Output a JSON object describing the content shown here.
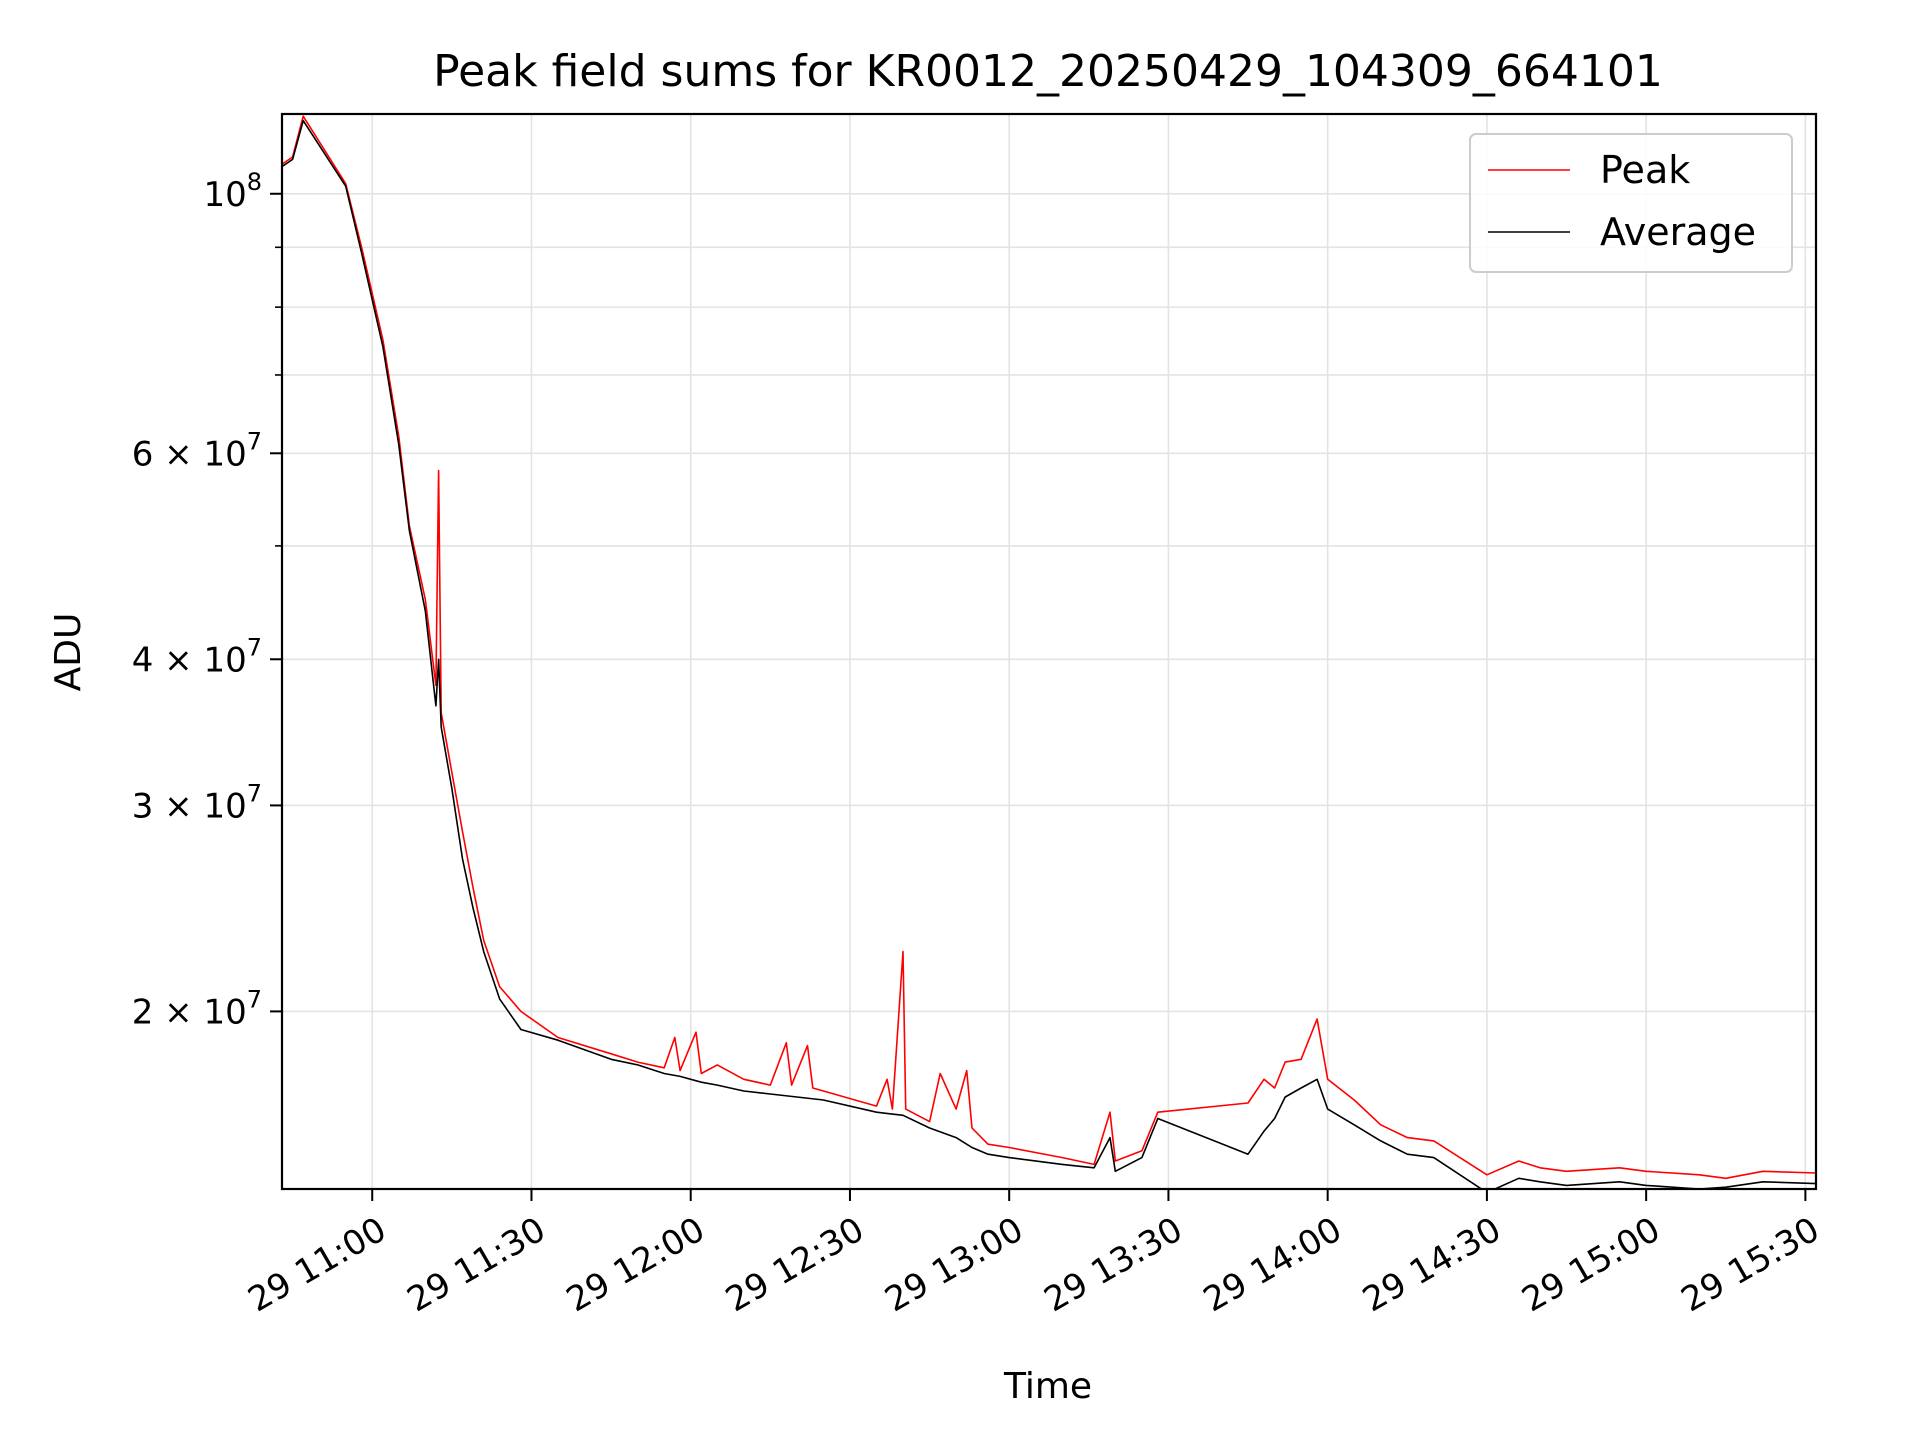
{
  "chart_data": {
    "type": "line",
    "title": "Peak field sums for KR0012_20250429_104309_664101",
    "xlabel": "Time",
    "ylabel": "ADU",
    "yscale": "log",
    "grid": true,
    "legend_position": "top-right",
    "xlim": [
      "2025-04-29 10:43",
      "2025-04-29 15:32"
    ],
    "ylim": [
      14100000,
      117000000
    ],
    "x_ticks": [
      {
        "value": "2025-04-29 11:00",
        "label": "29 11:00"
      },
      {
        "value": "2025-04-29 11:30",
        "label": "29 11:30"
      },
      {
        "value": "2025-04-29 12:00",
        "label": "29 12:00"
      },
      {
        "value": "2025-04-29 12:30",
        "label": "29 12:30"
      },
      {
        "value": "2025-04-29 13:00",
        "label": "29 13:00"
      },
      {
        "value": "2025-04-29 13:30",
        "label": "29 13:30"
      },
      {
        "value": "2025-04-29 14:00",
        "label": "29 14:00"
      },
      {
        "value": "2025-04-29 14:30",
        "label": "29 14:30"
      },
      {
        "value": "2025-04-29 15:00",
        "label": "29 15:00"
      },
      {
        "value": "2025-04-29 15:30",
        "label": "29 15:30"
      }
    ],
    "y_ticks": [
      {
        "value": 20000000,
        "base": "2 × 10",
        "exp": "7"
      },
      {
        "value": 30000000,
        "base": "3 × 10",
        "exp": "7"
      },
      {
        "value": 40000000,
        "base": "4 × 10",
        "exp": "7"
      },
      {
        "value": 60000000,
        "base": "6 × 10",
        "exp": "7"
      },
      {
        "value": 100000000,
        "base": "10",
        "exp": "8"
      }
    ],
    "y_minor_ticks": [
      50000000,
      70000000,
      80000000,
      90000000
    ],
    "series": [
      {
        "name": "Peak",
        "color": "#ff0000",
        "points": [
          [
            "2025-04-29 10:43",
            106000000
          ],
          [
            "2025-04-29 10:45",
            107500000
          ],
          [
            "2025-04-29 10:47",
            116500000
          ],
          [
            "2025-04-29 10:55",
            102000000
          ],
          [
            "2025-04-29 10:58",
            90000000
          ],
          [
            "2025-04-29 11:02",
            75000000
          ],
          [
            "2025-04-29 11:05",
            62000000
          ],
          [
            "2025-04-29 11:07",
            52000000
          ],
          [
            "2025-04-29 11:10",
            45000000
          ],
          [
            "2025-04-29 11:12",
            38000000
          ],
          [
            "2025-04-29 11:12:30",
            58000000
          ],
          [
            "2025-04-29 11:13",
            36000000
          ],
          [
            "2025-04-29 11:15",
            32000000
          ],
          [
            "2025-04-29 11:17",
            28500000
          ],
          [
            "2025-04-29 11:19",
            25500000
          ],
          [
            "2025-04-29 11:21",
            23000000
          ],
          [
            "2025-04-29 11:24",
            21000000
          ],
          [
            "2025-04-29 11:28",
            20000000
          ],
          [
            "2025-04-29 11:35",
            19000000
          ],
          [
            "2025-04-29 11:45",
            18400000
          ],
          [
            "2025-04-29 11:50",
            18100000
          ],
          [
            "2025-04-29 11:55",
            17900000
          ],
          [
            "2025-04-29 11:57",
            19000000
          ],
          [
            "2025-04-29 11:58",
            17800000
          ],
          [
            "2025-04-29 12:01",
            19200000
          ],
          [
            "2025-04-29 12:02",
            17700000
          ],
          [
            "2025-04-29 12:05",
            18000000
          ],
          [
            "2025-04-29 12:10",
            17500000
          ],
          [
            "2025-04-29 12:15",
            17300000
          ],
          [
            "2025-04-29 12:18",
            18800000
          ],
          [
            "2025-04-29 12:19",
            17300000
          ],
          [
            "2025-04-29 12:22",
            18700000
          ],
          [
            "2025-04-29 12:23",
            17200000
          ],
          [
            "2025-04-29 12:25",
            17100000
          ],
          [
            "2025-04-29 12:35",
            16600000
          ],
          [
            "2025-04-29 12:37",
            17500000
          ],
          [
            "2025-04-29 12:38",
            16500000
          ],
          [
            "2025-04-29 12:40",
            22500000
          ],
          [
            "2025-04-29 12:40:30",
            16500000
          ],
          [
            "2025-04-29 12:45",
            16100000
          ],
          [
            "2025-04-29 12:47",
            17700000
          ],
          [
            "2025-04-29 12:50",
            16500000
          ],
          [
            "2025-04-29 12:52",
            17800000
          ],
          [
            "2025-04-29 12:53",
            15900000
          ],
          [
            "2025-04-29 12:56",
            15400000
          ],
          [
            "2025-04-29 13:00",
            15300000
          ],
          [
            "2025-04-29 13:10",
            15000000
          ],
          [
            "2025-04-29 13:16",
            14800000
          ],
          [
            "2025-04-29 13:19",
            16400000
          ],
          [
            "2025-04-29 13:20",
            14900000
          ],
          [
            "2025-04-29 13:25",
            15200000
          ],
          [
            "2025-04-29 13:28",
            16400000
          ],
          [
            "2025-04-29 13:45",
            16700000
          ],
          [
            "2025-04-29 13:48",
            17500000
          ],
          [
            "2025-04-29 13:50",
            17200000
          ],
          [
            "2025-04-29 13:52",
            18100000
          ],
          [
            "2025-04-29 13:55",
            18200000
          ],
          [
            "2025-04-29 13:58",
            19700000
          ],
          [
            "2025-04-29 14:00",
            17500000
          ],
          [
            "2025-04-29 14:05",
            16800000
          ],
          [
            "2025-04-29 14:10",
            16000000
          ],
          [
            "2025-04-29 14:15",
            15600000
          ],
          [
            "2025-04-29 14:20",
            15500000
          ],
          [
            "2025-04-29 14:30",
            14500000
          ],
          [
            "2025-04-29 14:36",
            14900000
          ],
          [
            "2025-04-29 14:40",
            14700000
          ],
          [
            "2025-04-29 14:45",
            14600000
          ],
          [
            "2025-04-29 14:55",
            14700000
          ],
          [
            "2025-04-29 15:00",
            14600000
          ],
          [
            "2025-04-29 15:10",
            14500000
          ],
          [
            "2025-04-29 15:15",
            14400000
          ],
          [
            "2025-04-29 15:22",
            14600000
          ],
          [
            "2025-04-29 15:32",
            14550000
          ]
        ]
      },
      {
        "name": "Average",
        "color": "#000000",
        "points": [
          [
            "2025-04-29 10:43",
            105500000
          ],
          [
            "2025-04-29 10:45",
            107000000
          ],
          [
            "2025-04-29 10:47",
            115500000
          ],
          [
            "2025-04-29 10:55",
            101500000
          ],
          [
            "2025-04-29 10:58",
            89000000
          ],
          [
            "2025-04-29 11:02",
            74000000
          ],
          [
            "2025-04-29 11:05",
            61000000
          ],
          [
            "2025-04-29 11:07",
            51500000
          ],
          [
            "2025-04-29 11:10",
            44000000
          ],
          [
            "2025-04-29 11:12",
            36500000
          ],
          [
            "2025-04-29 11:12:30",
            40000000
          ],
          [
            "2025-04-29 11:13",
            35000000
          ],
          [
            "2025-04-29 11:15",
            31000000
          ],
          [
            "2025-04-29 11:17",
            27000000
          ],
          [
            "2025-04-29 11:19",
            24500000
          ],
          [
            "2025-04-29 11:21",
            22500000
          ],
          [
            "2025-04-29 11:24",
            20500000
          ],
          [
            "2025-04-29 11:28",
            19300000
          ],
          [
            "2025-04-29 11:35",
            18900000
          ],
          [
            "2025-04-29 11:45",
            18200000
          ],
          [
            "2025-04-29 11:50",
            18000000
          ],
          [
            "2025-04-29 11:55",
            17700000
          ],
          [
            "2025-04-29 11:58",
            17600000
          ],
          [
            "2025-04-29 12:02",
            17400000
          ],
          [
            "2025-04-29 12:05",
            17300000
          ],
          [
            "2025-04-29 12:10",
            17100000
          ],
          [
            "2025-04-29 12:15",
            17000000
          ],
          [
            "2025-04-29 12:20",
            16900000
          ],
          [
            "2025-04-29 12:25",
            16800000
          ],
          [
            "2025-04-29 12:35",
            16400000
          ],
          [
            "2025-04-29 12:40",
            16300000
          ],
          [
            "2025-04-29 12:45",
            15900000
          ],
          [
            "2025-04-29 12:50",
            15600000
          ],
          [
            "2025-04-29 12:53",
            15300000
          ],
          [
            "2025-04-29 12:56",
            15100000
          ],
          [
            "2025-04-29 13:00",
            15000000
          ],
          [
            "2025-04-29 13:10",
            14800000
          ],
          [
            "2025-04-29 13:16",
            14700000
          ],
          [
            "2025-04-29 13:19",
            15600000
          ],
          [
            "2025-04-29 13:20",
            14600000
          ],
          [
            "2025-04-29 13:25",
            15000000
          ],
          [
            "2025-04-29 13:28",
            16200000
          ],
          [
            "2025-04-29 13:45",
            15100000
          ],
          [
            "2025-04-29 13:48",
            15800000
          ],
          [
            "2025-04-29 13:50",
            16200000
          ],
          [
            "2025-04-29 13:52",
            16900000
          ],
          [
            "2025-04-29 13:55",
            17200000
          ],
          [
            "2025-04-29 13:58",
            17500000
          ],
          [
            "2025-04-29 14:00",
            16500000
          ],
          [
            "2025-04-29 14:05",
            16000000
          ],
          [
            "2025-04-29 14:10",
            15500000
          ],
          [
            "2025-04-29 14:15",
            15100000
          ],
          [
            "2025-04-29 14:20",
            15000000
          ],
          [
            "2025-04-29 14:30",
            14000000
          ],
          [
            "2025-04-29 14:36",
            14400000
          ],
          [
            "2025-04-29 14:40",
            14300000
          ],
          [
            "2025-04-29 14:45",
            14200000
          ],
          [
            "2025-04-29 14:55",
            14300000
          ],
          [
            "2025-04-29 15:00",
            14200000
          ],
          [
            "2025-04-29 15:10",
            14100000
          ],
          [
            "2025-04-29 15:15",
            14150000
          ],
          [
            "2025-04-29 15:22",
            14300000
          ],
          [
            "2025-04-29 15:32",
            14250000
          ]
        ]
      }
    ]
  }
}
